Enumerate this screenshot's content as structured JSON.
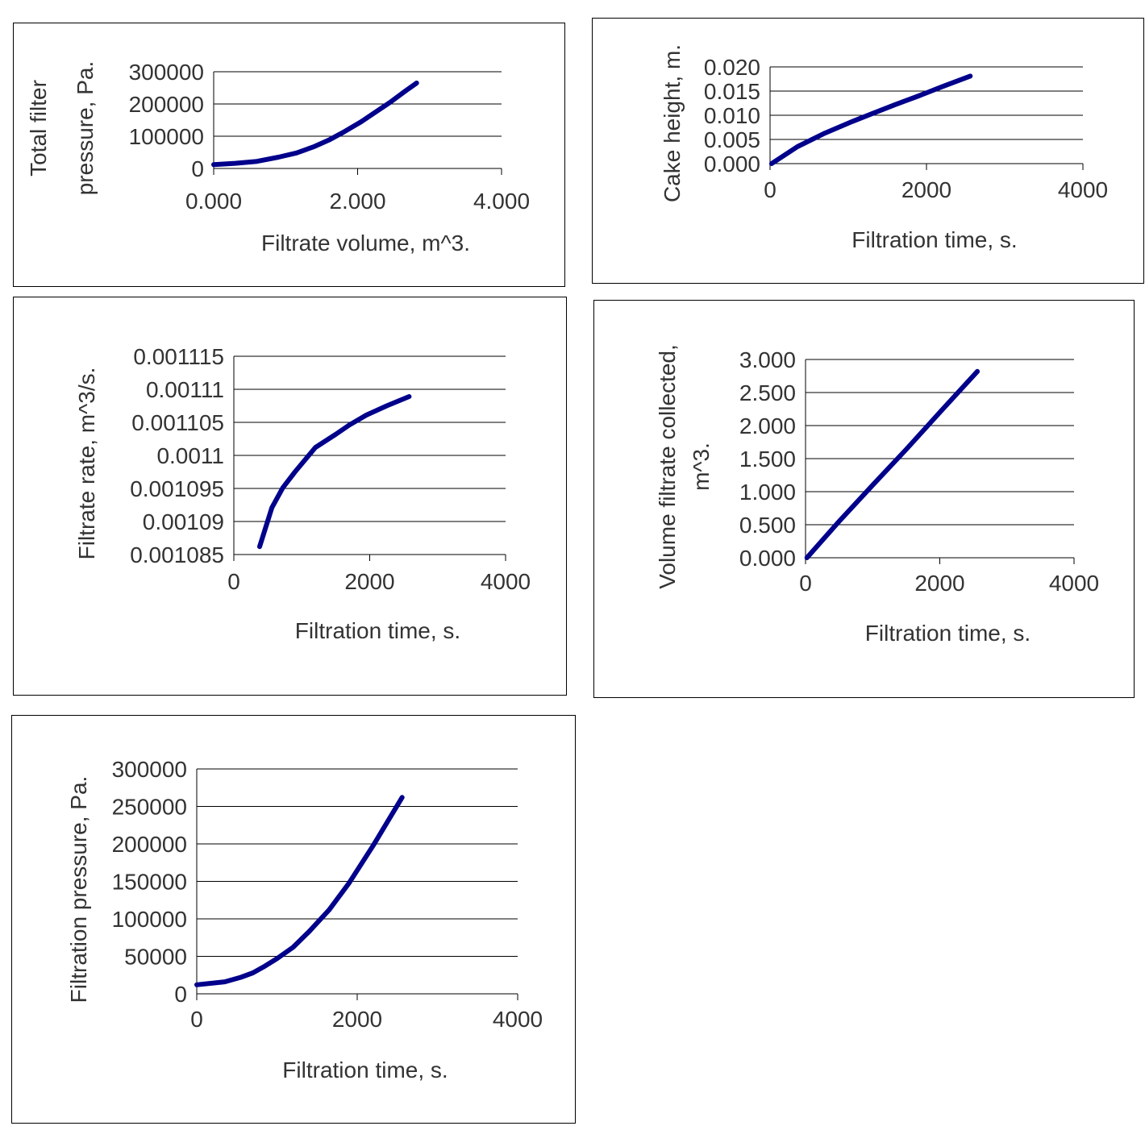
{
  "series_color": "#00008b",
  "chart_data": [
    {
      "type": "line",
      "xlabel": "Filtrate volume, m^3.",
      "ylabel_lines": [
        "Total filter",
        "pressure, Pa."
      ],
      "xlim": [
        0,
        4
      ],
      "ylim": [
        0,
        300000
      ],
      "xticks": [
        0,
        2,
        4
      ],
      "xtick_labels": [
        "0.000",
        "2.000",
        "4.000"
      ],
      "yticks": [
        0,
        100000,
        200000,
        300000
      ],
      "ytick_labels": [
        "0",
        "100000",
        "200000",
        "300000"
      ],
      "grid": true,
      "x": [
        0.0,
        0.3,
        0.6,
        0.9,
        1.15,
        1.4,
        1.6,
        1.8,
        2.05,
        2.25,
        2.45,
        2.65,
        2.82
      ],
      "y": [
        12000,
        16000,
        22000,
        35000,
        48000,
        68000,
        88000,
        112000,
        145000,
        175000,
        205000,
        238000,
        265000
      ]
    },
    {
      "type": "line",
      "xlabel": "Filtration time, s.",
      "ylabel_lines": [
        "Cake height, m."
      ],
      "xlim": [
        0,
        4000
      ],
      "ylim": [
        0,
        0.02
      ],
      "xticks": [
        0,
        2000,
        4000
      ],
      "xtick_labels": [
        "0",
        "2000",
        "4000"
      ],
      "yticks": [
        0,
        0.005,
        0.01,
        0.015,
        0.02
      ],
      "ytick_labels": [
        "0.000",
        "0.005",
        "0.010",
        "0.015",
        "0.020"
      ],
      "grid": true,
      "x": [
        20,
        350,
        700,
        1050,
        1300,
        1600,
        1900,
        2200,
        2560
      ],
      "y": [
        0.0,
        0.0035,
        0.0063,
        0.0087,
        0.0103,
        0.0122,
        0.014,
        0.0159,
        0.0181
      ]
    },
    {
      "type": "line",
      "xlabel": "Filtration time, s.",
      "ylabel_lines": [
        "Filtrate rate, m^3/s."
      ],
      "xlim": [
        0,
        4000
      ],
      "ylim": [
        0.001085,
        0.001115
      ],
      "xticks": [
        0,
        2000,
        4000
      ],
      "xtick_labels": [
        "0",
        "2000",
        "4000"
      ],
      "yticks": [
        0.001085,
        0.00109,
        0.001095,
        0.0011,
        0.001105,
        0.00111,
        0.001115
      ],
      "ytick_labels": [
        "0.001085",
        "0.00109",
        "0.001095",
        "0.0011",
        "0.001105",
        "0.00111",
        "0.001115"
      ],
      "grid": true,
      "x": [
        380,
        560,
        720,
        900,
        1200,
        1500,
        1700,
        1950,
        2250,
        2580
      ],
      "y": [
        0.0010862,
        0.0010921,
        0.0010951,
        0.0010975,
        0.0011012,
        0.0011032,
        0.0011046,
        0.0011061,
        0.0011075,
        0.0011089
      ]
    },
    {
      "type": "line",
      "xlabel": "Filtration time, s.",
      "ylabel_lines": [
        "Volume filtrate collected,",
        "m^3."
      ],
      "xlim": [
        0,
        4000
      ],
      "ylim": [
        0,
        3
      ],
      "xticks": [
        0,
        2000,
        4000
      ],
      "xtick_labels": [
        "0",
        "2000",
        "4000"
      ],
      "yticks": [
        0,
        0.5,
        1,
        1.5,
        2,
        2.5,
        3
      ],
      "ytick_labels": [
        "0.000",
        "0.500",
        "1.000",
        "1.500",
        "2.000",
        "2.500",
        "3.000"
      ],
      "grid": true,
      "x": [
        20,
        500,
        1000,
        1500,
        2000,
        2560
      ],
      "y": [
        0.0,
        0.55,
        1.1,
        1.64,
        2.2,
        2.82
      ]
    },
    {
      "type": "line",
      "xlabel": "Filtration time, s.",
      "ylabel_lines": [
        "Filtration pressure, Pa."
      ],
      "xlim": [
        0,
        4000
      ],
      "ylim": [
        0,
        300000
      ],
      "xticks": [
        0,
        2000,
        4000
      ],
      "xtick_labels": [
        "0",
        "2000",
        "4000"
      ],
      "yticks": [
        0,
        50000,
        100000,
        150000,
        200000,
        250000,
        300000
      ],
      "ytick_labels": [
        "0",
        "50000",
        "100000",
        "150000",
        "200000",
        "250000",
        "300000"
      ],
      "grid": true,
      "x": [
        0,
        350,
        550,
        700,
        850,
        1000,
        1200,
        1400,
        1650,
        1900,
        2200,
        2560
      ],
      "y": [
        12000,
        16000,
        22000,
        28000,
        37000,
        47000,
        62000,
        83000,
        112000,
        148000,
        198000,
        262000
      ]
    }
  ]
}
